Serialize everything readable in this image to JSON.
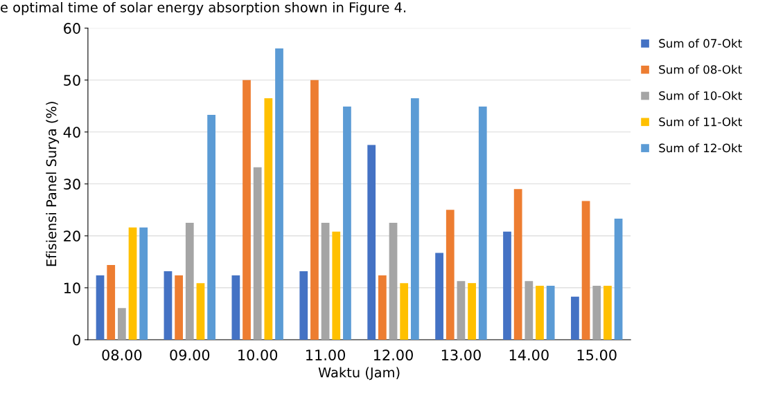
{
  "chart_data": {
    "type": "bar",
    "xlabel": "Waktu (Jam)",
    "ylabel": "Efisiensi Panel Surya (%)",
    "annotations": [
      "e optimal time of solar energy absorption shown in Figure 4."
    ],
    "categories": [
      "08.00",
      "09.00",
      "10.00",
      "11.00",
      "12.00",
      "13.00",
      "14.00",
      "15.00"
    ],
    "series": [
      {
        "name": "Sum of 07-Okt",
        "color": "#4472c4",
        "values": [
          12.4,
          13.2,
          12.4,
          13.2,
          37.5,
          16.7,
          20.8,
          8.3
        ]
      },
      {
        "name": "Sum of 08-Okt",
        "color": "#ed7d31",
        "values": [
          14.4,
          12.4,
          50,
          50,
          12.4,
          25,
          29,
          26.7
        ]
      },
      {
        "name": "Sum of 10-Okt",
        "color": "#a5a5a5",
        "values": [
          6.1,
          22.5,
          33.2,
          22.5,
          22.5,
          11.3,
          11.3,
          10.4
        ]
      },
      {
        "name": "Sum of 11-Okt",
        "color": "#ffc000",
        "values": [
          21.6,
          10.9,
          46.5,
          20.8,
          10.9,
          10.9,
          10.4,
          10.4
        ]
      },
      {
        "name": "Sum of 12-Okt",
        "color": "#5b9bd5",
        "values": [
          21.6,
          43.3,
          56.1,
          44.9,
          46.5,
          44.9,
          10.4,
          23.3
        ]
      }
    ],
    "ylim": [
      0,
      60
    ],
    "yticks": [
      0,
      10,
      20,
      30,
      40,
      50,
      60
    ],
    "grid": "y",
    "legend": "right"
  }
}
